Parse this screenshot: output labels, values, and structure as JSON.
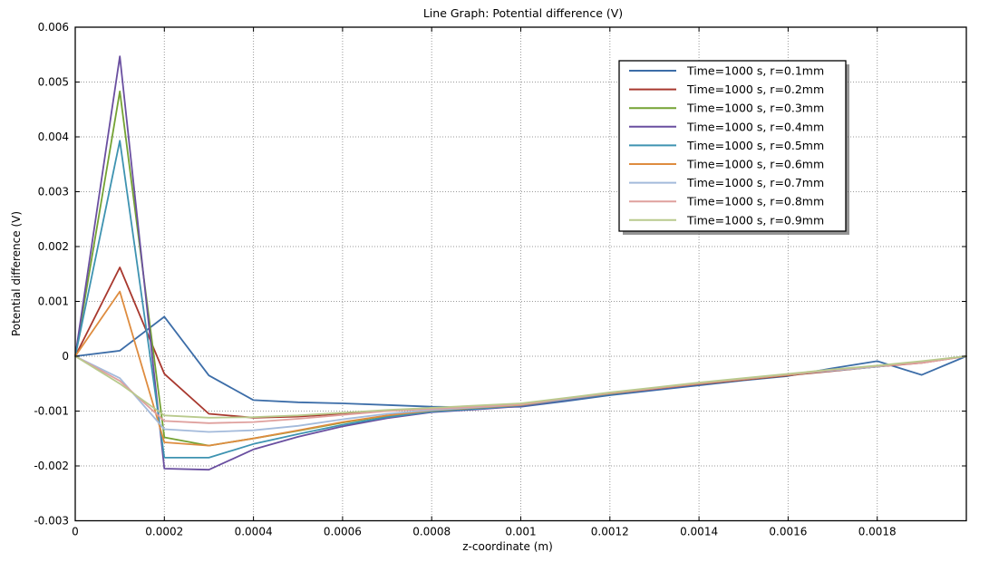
{
  "title": "Line Graph: Potential difference (V)",
  "chart_data": {
    "type": "line",
    "title": "Line Graph: Potential difference (V)",
    "xlabel": "z-coordinate (m)",
    "ylabel": "Potential difference (V)",
    "xlim": [
      0,
      0.002
    ],
    "ylim": [
      -0.003,
      0.006
    ],
    "grid": true,
    "legend_position": "top-right",
    "x_ticks": [
      0,
      0.0002,
      0.0004,
      0.0006,
      0.0008,
      0.001,
      0.0012,
      0.0014,
      0.0016,
      0.0018
    ],
    "x_tick_labels": [
      "0",
      "0.0002",
      "0.0004",
      "0.0006",
      "0.0008",
      "0.001",
      "0.0012",
      "0.0014",
      "0.0016",
      "0.0018"
    ],
    "y_ticks": [
      -0.003,
      -0.002,
      -0.001,
      0,
      0.001,
      0.002,
      0.003,
      0.004,
      0.005,
      0.006
    ],
    "y_tick_labels": [
      "-0.003",
      "-0.002",
      "-0.001",
      "0",
      "0.001",
      "0.002",
      "0.003",
      "0.004",
      "0.005",
      "0.006"
    ],
    "x": [
      0,
      0.0001,
      0.0002,
      0.0003,
      0.0004,
      0.0005,
      0.0006,
      0.0007,
      0.0008,
      0.0009,
      0.001,
      0.0011,
      0.0012,
      0.0013,
      0.0014,
      0.0015,
      0.0016,
      0.0017,
      0.0018,
      0.0019,
      0.002
    ],
    "series": [
      {
        "name": "Time=1000 s, r=0.1mm",
        "color": "#3C6DA8",
        "values": [
          0,
          0.0001,
          0.00072,
          -0.00035,
          -0.0008,
          -0.00084,
          -0.00086,
          -0.00089,
          -0.00092,
          -0.00093,
          -0.00092,
          -0.00082,
          -0.00071,
          -0.00062,
          -0.00053,
          -0.00044,
          -0.00036,
          -0.00022,
          -9e-05,
          -0.00034,
          0
        ]
      },
      {
        "name": "Time=1000 s, r=0.2mm",
        "color": "#A8382E",
        "values": [
          0,
          0.00162,
          -0.00032,
          -0.00105,
          -0.00112,
          -0.0011,
          -0.00105,
          -0.00099,
          -0.00095,
          -0.00091,
          -0.00087,
          -0.00078,
          -0.00068,
          -0.00059,
          -0.00051,
          -0.00043,
          -0.00035,
          -0.00027,
          -0.00019,
          -0.00012,
          0
        ]
      },
      {
        "name": "Time=1000 s, r=0.3mm",
        "color": "#74A233",
        "values": [
          0,
          0.00483,
          -0.00148,
          -0.00163,
          -0.0015,
          -0.00136,
          -0.00121,
          -0.00109,
          -0.001,
          -0.00095,
          -0.0009,
          -0.00079,
          -0.00068,
          -0.00059,
          -0.0005,
          -0.00042,
          -0.00034,
          -0.00026,
          -0.00019,
          -0.0001,
          0
        ]
      },
      {
        "name": "Time=1000 s, r=0.4mm",
        "color": "#6A4FA0",
        "values": [
          0,
          0.00547,
          -0.00205,
          -0.00207,
          -0.0017,
          -0.00147,
          -0.00128,
          -0.00113,
          -0.00102,
          -0.00097,
          -0.00091,
          -0.0008,
          -0.00069,
          -0.0006,
          -0.00051,
          -0.00042,
          -0.00034,
          -0.00026,
          -0.00019,
          -0.0001,
          0
        ]
      },
      {
        "name": "Time=1000 s, r=0.5mm",
        "color": "#3E93B1",
        "values": [
          0,
          0.00393,
          -0.00185,
          -0.00185,
          -0.0016,
          -0.00142,
          -0.00125,
          -0.00111,
          -0.00101,
          -0.00096,
          -0.0009,
          -0.00079,
          -0.00069,
          -0.00059,
          -0.0005,
          -0.00042,
          -0.00034,
          -0.00026,
          -0.00019,
          -0.0001,
          0
        ]
      },
      {
        "name": "Time=1000 s, r=0.6mm",
        "color": "#DE8C3F",
        "values": [
          0,
          0.00118,
          -0.00157,
          -0.00163,
          -0.0015,
          -0.00135,
          -0.0012,
          -0.00108,
          -0.00099,
          -0.00094,
          -0.00089,
          -0.00078,
          -0.00068,
          -0.00059,
          -0.0005,
          -0.00042,
          -0.00034,
          -0.00026,
          -0.00019,
          -0.0001,
          0
        ]
      },
      {
        "name": "Time=1000 s, r=0.7mm",
        "color": "#A3BADB",
        "values": [
          0,
          -0.0004,
          -0.00133,
          -0.00138,
          -0.00135,
          -0.00127,
          -0.00115,
          -0.00105,
          -0.00098,
          -0.00093,
          -0.00088,
          -0.00078,
          -0.00067,
          -0.00058,
          -0.00049,
          -0.00041,
          -0.00033,
          -0.00026,
          -0.00019,
          -0.0001,
          0
        ]
      },
      {
        "name": "Time=1000 s, r=0.8mm",
        "color": "#DFA09D",
        "values": [
          0,
          -0.00045,
          -0.00118,
          -0.00122,
          -0.0012,
          -0.00114,
          -0.00107,
          -0.001,
          -0.00096,
          -0.00092,
          -0.00088,
          -0.00077,
          -0.00067,
          -0.00058,
          -0.00049,
          -0.00041,
          -0.00033,
          -0.00025,
          -0.00018,
          -0.00012,
          0
        ]
      },
      {
        "name": "Time=1000 s, r=0.9mm",
        "color": "#B9CA8D",
        "values": [
          0,
          -0.0005,
          -0.00108,
          -0.00112,
          -0.00111,
          -0.00108,
          -0.00103,
          -0.00098,
          -0.00094,
          -0.0009,
          -0.00086,
          -0.00076,
          -0.00066,
          -0.00057,
          -0.00048,
          -0.0004,
          -0.00032,
          -0.00024,
          -0.00017,
          -9e-05,
          0
        ]
      }
    ],
    "grid_color": "#9a9a9a",
    "frame_color": "#000000"
  }
}
